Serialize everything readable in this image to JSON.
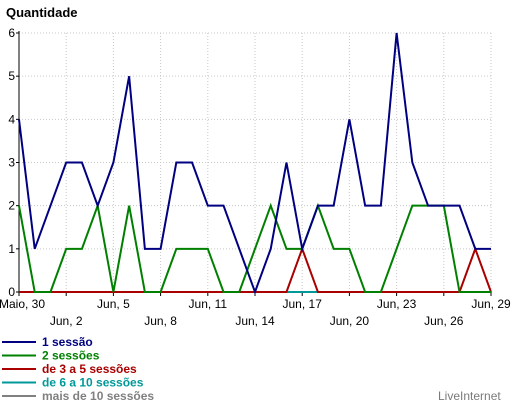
{
  "chart_data": {
    "type": "line",
    "ylabel": "Quantidade",
    "ylim": [
      0,
      6
    ],
    "yticks": [
      0,
      1,
      2,
      3,
      4,
      5,
      6
    ],
    "grid": true,
    "x": [
      "Maio, 30",
      "May 31",
      "Jun, 1",
      "Jun, 2",
      "Jun, 3",
      "Jun, 4",
      "Jun, 5",
      "Jun, 6",
      "Jun, 7",
      "Jun, 8",
      "Jun, 9",
      "Jun, 10",
      "Jun, 11",
      "Jun, 12",
      "Jun, 13",
      "Jun, 14",
      "Jun, 15",
      "Jun, 16",
      "Jun, 17",
      "Jun, 18",
      "Jun, 19",
      "Jun, 20",
      "Jun, 21",
      "Jun, 22",
      "Jun, 23",
      "Jun, 24",
      "Jun, 25",
      "Jun, 26",
      "Jun, 27",
      "Jun, 28",
      "Jun, 29"
    ],
    "tick_labels": [
      {
        "label": "Maio, 30",
        "index": 0,
        "row": 0
      },
      {
        "label": "Jun, 2",
        "index": 3,
        "row": 1
      },
      {
        "label": "Jun, 5",
        "index": 6,
        "row": 0
      },
      {
        "label": "Jun, 8",
        "index": 9,
        "row": 1
      },
      {
        "label": "Jun, 11",
        "index": 12,
        "row": 0
      },
      {
        "label": "Jun, 14",
        "index": 15,
        "row": 1
      },
      {
        "label": "Jun, 17",
        "index": 18,
        "row": 0
      },
      {
        "label": "Jun, 20",
        "index": 21,
        "row": 1
      },
      {
        "label": "Jun, 23",
        "index": 24,
        "row": 0
      },
      {
        "label": "Jun, 26",
        "index": 27,
        "row": 1
      },
      {
        "label": "Jun, 29",
        "index": 30,
        "row": 0
      }
    ],
    "series": [
      {
        "name": "1 sessão",
        "color": "#000080",
        "values": [
          4,
          1,
          2,
          3,
          3,
          2,
          3,
          5,
          1,
          1,
          3,
          3,
          2,
          2,
          1,
          0,
          1,
          3,
          1,
          2,
          2,
          4,
          2,
          2,
          6,
          3,
          2,
          2,
          2,
          1,
          1
        ]
      },
      {
        "name": "2 sessões",
        "color": "#008000",
        "values": [
          2,
          0,
          0,
          1,
          1,
          2,
          0,
          2,
          0,
          0,
          1,
          1,
          1,
          0,
          0,
          1,
          2,
          1,
          1,
          2,
          1,
          1,
          0,
          0,
          1,
          2,
          2,
          2,
          0,
          0,
          0
        ]
      },
      {
        "name": "de 3 a 5 sessões",
        "color": "#aa0000",
        "values": [
          0,
          0,
          0,
          0,
          0,
          0,
          0,
          0,
          0,
          0,
          0,
          0,
          0,
          0,
          0,
          0,
          0,
          0,
          1,
          0,
          0,
          0,
          0,
          0,
          0,
          0,
          0,
          0,
          0,
          1,
          0
        ]
      },
      {
        "name": "de 6 a 10 sessões",
        "color": "#009999",
        "values": [
          0,
          0,
          0,
          0,
          0,
          0,
          0,
          0,
          0,
          0,
          0,
          0,
          0,
          0,
          0,
          0,
          0,
          0,
          0,
          0,
          0,
          0,
          0,
          0,
          0,
          0,
          0,
          0,
          0,
          0,
          0
        ]
      },
      {
        "name": "mais de 10 sessões",
        "color": "#808080",
        "values": [
          0,
          0,
          0,
          0,
          0,
          0,
          0,
          0,
          0,
          0,
          0,
          0,
          0,
          0,
          0,
          0,
          0,
          0,
          0,
          0,
          0,
          0,
          0,
          0,
          0,
          0,
          0,
          0,
          0,
          0,
          0
        ]
      }
    ]
  },
  "brand": "LiveInternet"
}
